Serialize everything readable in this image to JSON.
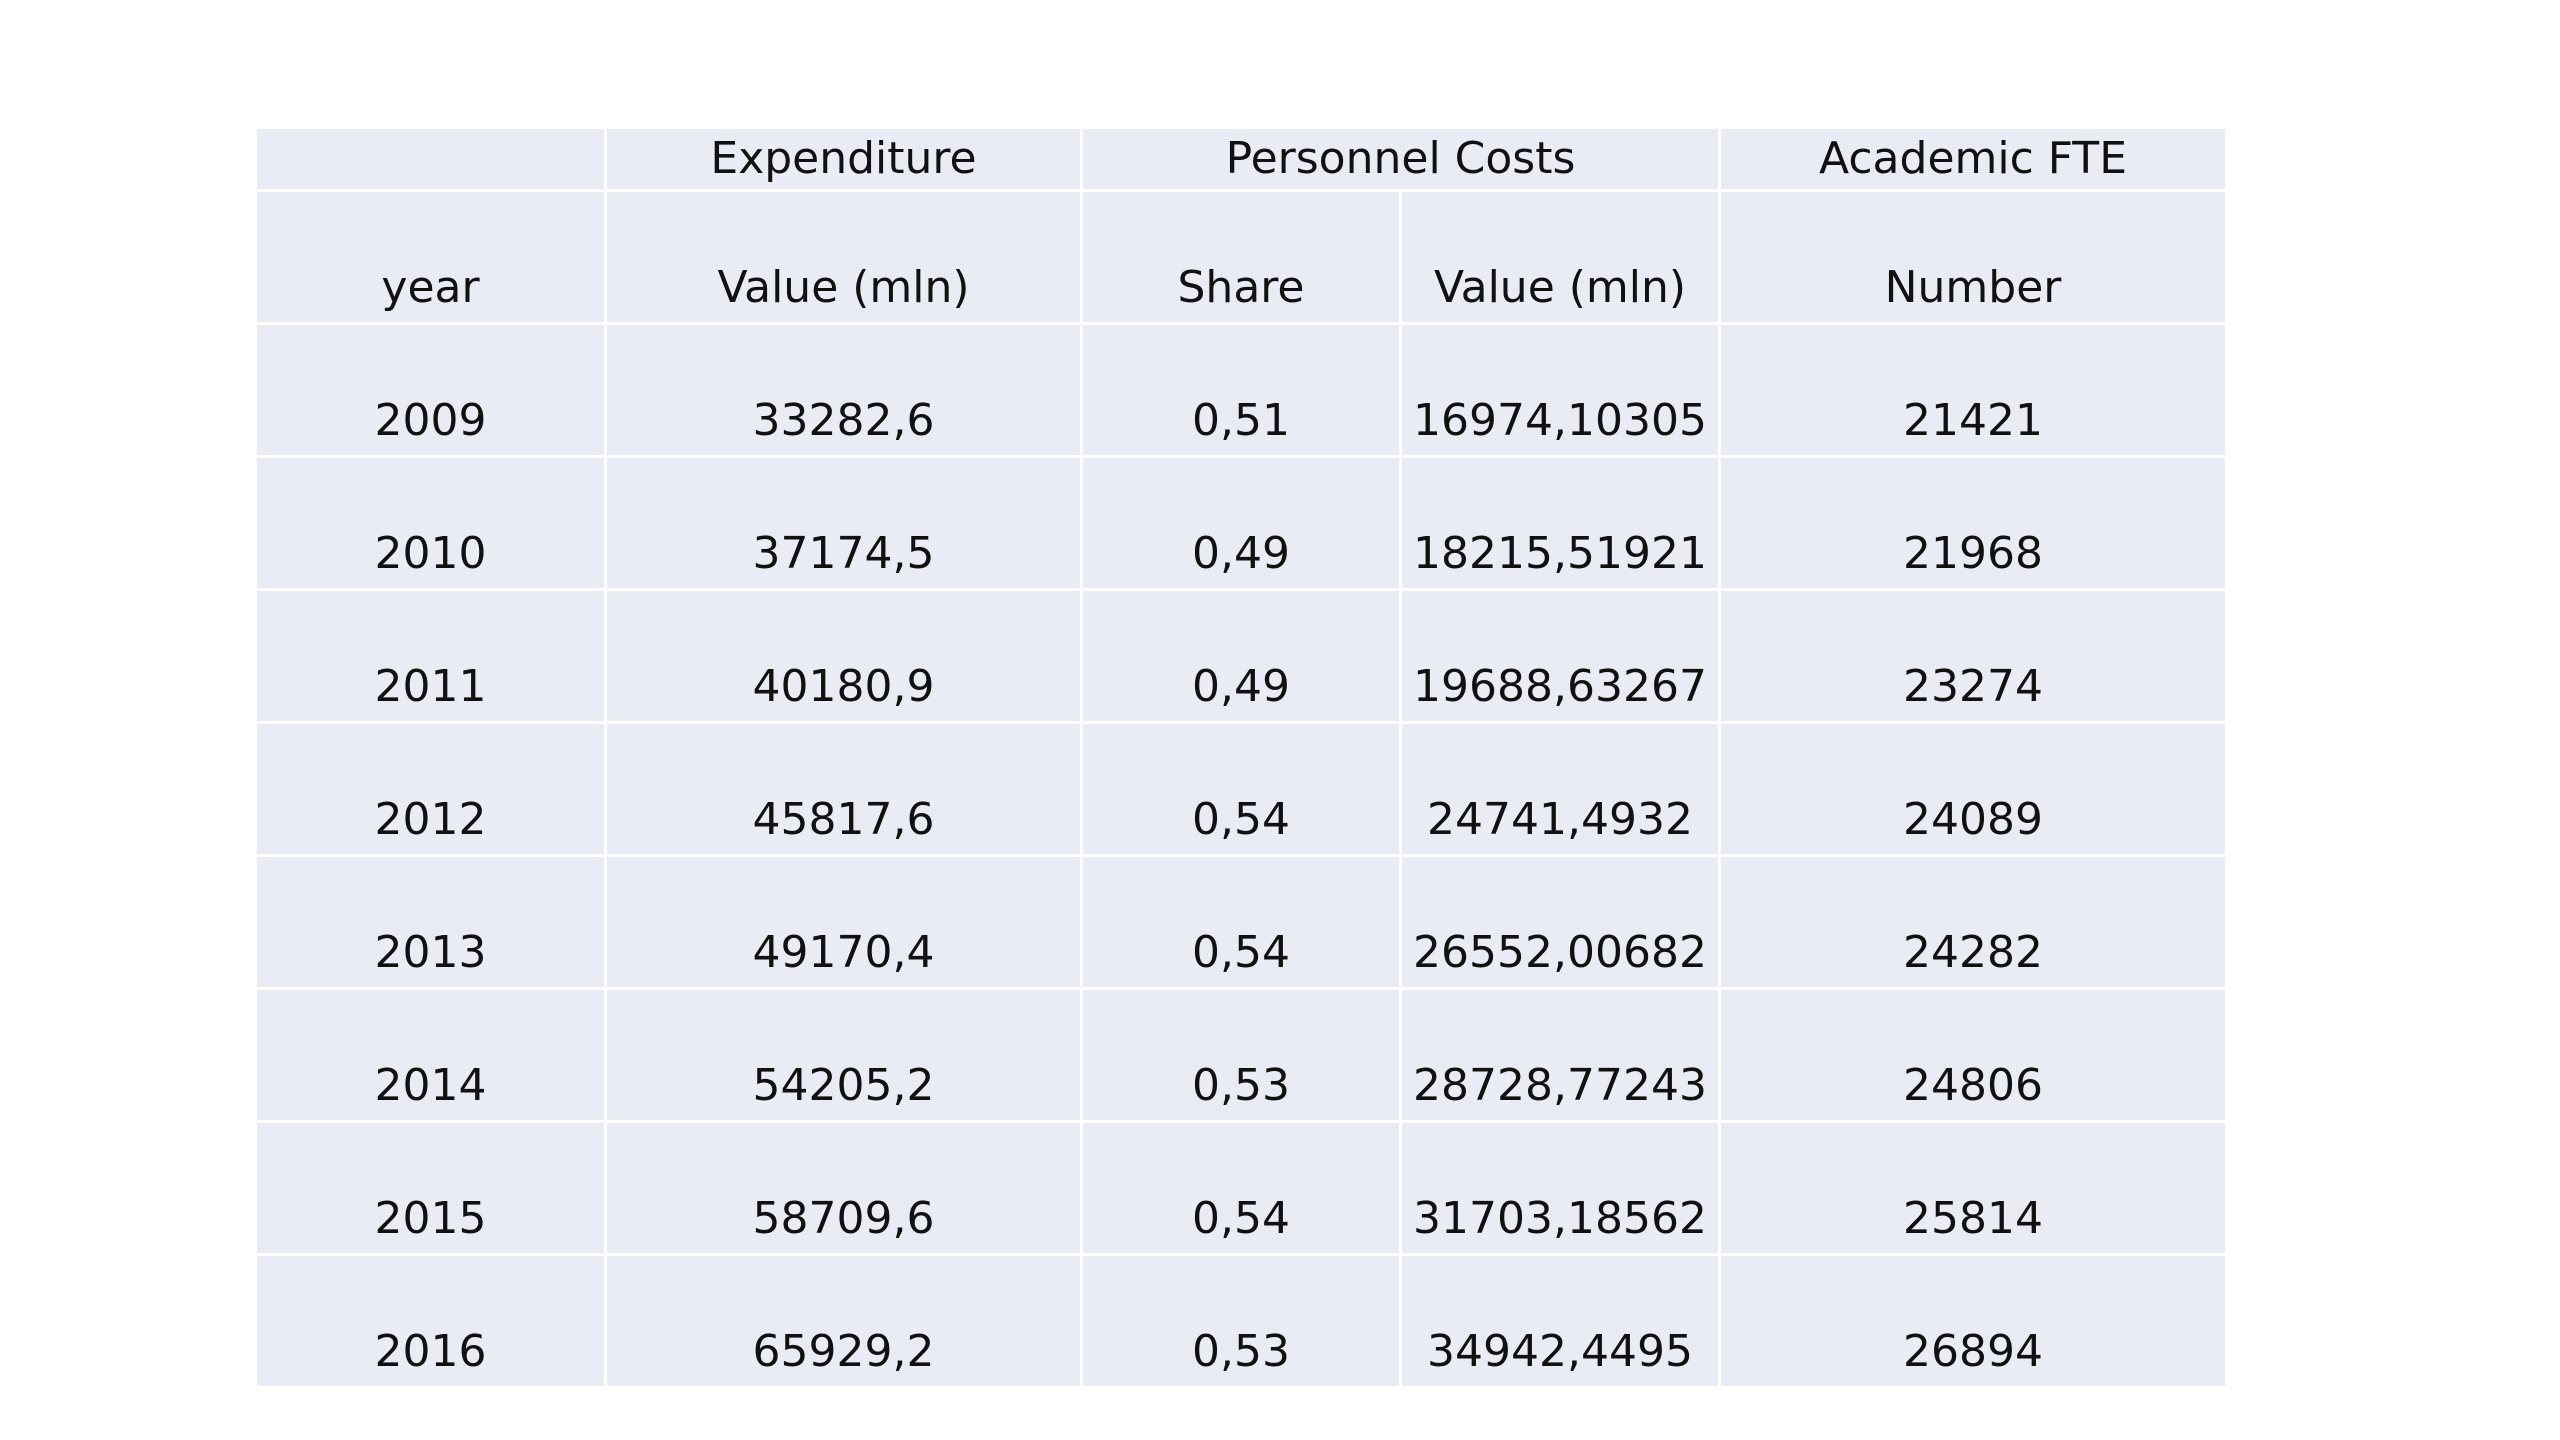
{
  "table": {
    "group_headers": [
      "",
      "Expenditure",
      "Personnel Costs",
      "Academic FTE"
    ],
    "column_headers": [
      "year",
      "Value (mln)",
      "Share",
      "Value (mln)",
      "Number"
    ],
    "rows": [
      [
        "2009",
        "33282,6",
        "0,51",
        "16974,10305",
        "21421"
      ],
      [
        "2010",
        "37174,5",
        "0,49",
        "18215,51921",
        "21968"
      ],
      [
        "2011",
        "40180,9",
        "0,49",
        "19688,63267",
        "23274"
      ],
      [
        "2012",
        "45817,6",
        "0,54",
        "24741,4932",
        "24089"
      ],
      [
        "2013",
        "49170,4",
        "0,54",
        "26552,00682",
        "24282"
      ],
      [
        "2014",
        "54205,2",
        "0,53",
        "28728,77243",
        "24806"
      ],
      [
        "2015",
        "58709,6",
        "0,54",
        "31703,18562",
        "25814"
      ],
      [
        "2016",
        "65929,2",
        "0,53",
        "34942,4495",
        "26894"
      ]
    ]
  },
  "colors": {
    "cell_background": "#e9ecf5",
    "grid_lines": "#ffffff",
    "text": "#111111"
  }
}
